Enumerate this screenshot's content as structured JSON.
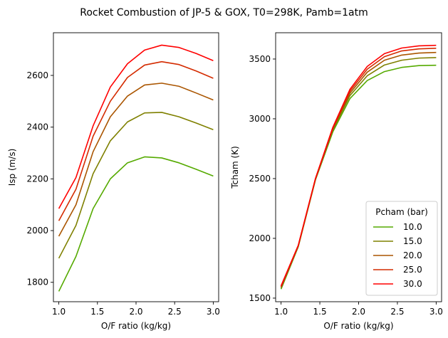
{
  "figure": {
    "title": "Rocket Combustion of JP-5 & GOX, T0=298K, Pamb=1atm"
  },
  "legend": {
    "title": "Pcham (bar)",
    "placement": "lower right of right subplot"
  },
  "chart_data": [
    {
      "type": "line",
      "xlabel": "O/F ratio (kg/kg)",
      "ylabel": "Isp (m/s)",
      "xlim": [
        0.93,
        3.07
      ],
      "ylim": [
        1725,
        2765
      ],
      "xticks": [
        1.0,
        1.5,
        2.0,
        2.5,
        3.0
      ],
      "xtick_labels": [
        "1.0",
        "1.5",
        "2.0",
        "2.5",
        "3.0"
      ],
      "yticks": [
        1800,
        2000,
        2200,
        2400,
        2600
      ],
      "ytick_labels": [
        "1800",
        "2000",
        "2200",
        "2400",
        "2600"
      ],
      "grid": false,
      "x": [
        1.0,
        1.222,
        1.444,
        1.667,
        1.889,
        2.111,
        2.333,
        2.556,
        2.778,
        3.0
      ],
      "series": [
        {
          "name": "10.0",
          "color": "#55aa00",
          "values": [
            1765,
            1900,
            2085,
            2200,
            2262,
            2285,
            2281,
            2262,
            2237,
            2211
          ]
        },
        {
          "name": "15.0",
          "color": "#7f8000",
          "values": [
            1893,
            2020,
            2220,
            2347,
            2420,
            2455,
            2457,
            2440,
            2416,
            2390
          ]
        },
        {
          "name": "20.0",
          "color": "#aa5500",
          "values": [
            1978,
            2100,
            2305,
            2440,
            2520,
            2563,
            2570,
            2558,
            2532,
            2505
          ]
        },
        {
          "name": "25.0",
          "color": "#d42b00",
          "values": [
            2038,
            2160,
            2365,
            2500,
            2592,
            2640,
            2653,
            2642,
            2617,
            2589
          ]
        },
        {
          "name": "30.0",
          "color": "#ff0000",
          "values": [
            2085,
            2205,
            2405,
            2555,
            2645,
            2698,
            2717,
            2708,
            2685,
            2657
          ]
        }
      ]
    },
    {
      "type": "line",
      "xlabel": "O/F ratio (kg/kg)",
      "ylabel": "Tcham (K)",
      "xlim": [
        0.93,
        3.07
      ],
      "ylim": [
        1470,
        3720
      ],
      "xticks": [
        1.0,
        1.5,
        2.0,
        2.5,
        3.0
      ],
      "xtick_labels": [
        "1.0",
        "1.5",
        "2.0",
        "2.5",
        "3.0"
      ],
      "yticks": [
        1500,
        2000,
        2500,
        3000,
        3500
      ],
      "ytick_labels": [
        "1500",
        "2000",
        "2500",
        "3000",
        "3500"
      ],
      "grid": false,
      "x": [
        1.0,
        1.222,
        1.444,
        1.667,
        1.889,
        2.111,
        2.333,
        2.556,
        2.778,
        3.0
      ],
      "series": [
        {
          "name": "10.0",
          "color": "#55aa00",
          "values": [
            1575,
            1930,
            2490,
            2890,
            3170,
            3320,
            3395,
            3430,
            3445,
            3448
          ]
        },
        {
          "name": "15.0",
          "color": "#7f8000",
          "values": [
            1585,
            1935,
            2495,
            2905,
            3195,
            3360,
            3450,
            3490,
            3508,
            3512
          ]
        },
        {
          "name": "20.0",
          "color": "#aa5500",
          "values": [
            1592,
            1938,
            2498,
            2915,
            3215,
            3390,
            3490,
            3533,
            3550,
            3555
          ]
        },
        {
          "name": "25.0",
          "color": "#d42b00",
          "values": [
            1598,
            1940,
            2500,
            2922,
            3232,
            3415,
            3520,
            3568,
            3585,
            3590
          ]
        },
        {
          "name": "30.0",
          "color": "#ff0000",
          "values": [
            1603,
            1942,
            2502,
            2928,
            3248,
            3438,
            3545,
            3592,
            3610,
            3615
          ]
        }
      ]
    }
  ]
}
